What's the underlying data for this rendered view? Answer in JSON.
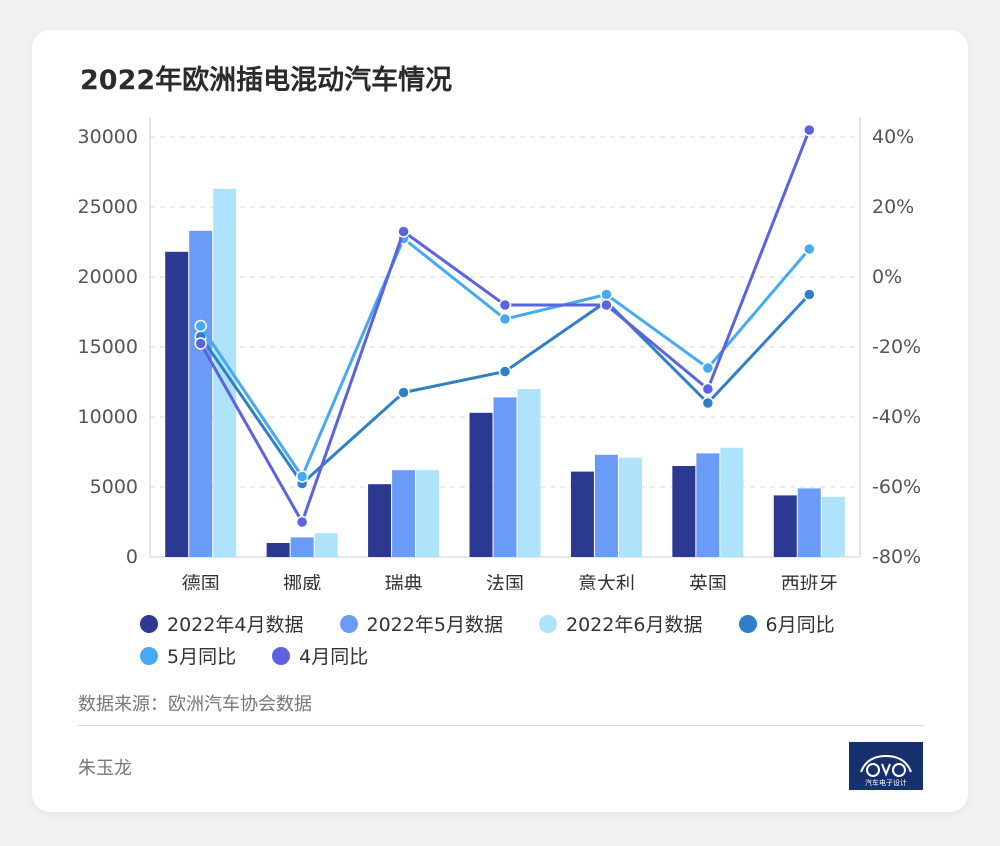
{
  "title": "2022年欧洲插电混动汽车情况",
  "source": "数据来源：欧洲汽车协会数据",
  "author": "朱玉龙",
  "logo": {
    "icon": "car-outline-logo",
    "text": "汽车电子设计"
  },
  "colors": {
    "apr_bar": "#2b3990",
    "may_bar": "#6a9bf7",
    "jun_bar": "#aee3fb",
    "jun_yoy": "#2f80c7",
    "may_yoy": "#45aaf2",
    "apr_yoy": "#5b63e0",
    "grid": "#d6d6d6",
    "axis_text": "#555555"
  },
  "chart_data": {
    "type": "bar",
    "categories": [
      "德国",
      "挪威",
      "瑞典",
      "法国",
      "意大利",
      "英国",
      "西班牙"
    ],
    "bar_series": [
      {
        "name": "2022年4月数据",
        "color_key": "apr_bar",
        "values": [
          21800,
          1000,
          5200,
          10300,
          6100,
          6500,
          4400
        ]
      },
      {
        "name": "2022年5月数据",
        "color_key": "may_bar",
        "values": [
          23300,
          1400,
          6200,
          11400,
          7300,
          7400,
          4900
        ]
      },
      {
        "name": "2022年6月数据",
        "color_key": "jun_bar",
        "values": [
          26300,
          1700,
          6200,
          12000,
          7100,
          7800,
          4300
        ]
      }
    ],
    "line_series": [
      {
        "name": "6月同比",
        "color_key": "jun_yoy",
        "values": [
          -17,
          -59,
          -33,
          -27,
          -7,
          -36,
          -5
        ]
      },
      {
        "name": "5月同比",
        "color_key": "may_yoy",
        "values": [
          -14,
          -57,
          11,
          -12,
          -5,
          -26,
          8
        ]
      },
      {
        "name": "4月同比",
        "color_key": "apr_yoy",
        "values": [
          -19,
          -70,
          13,
          -8,
          -8,
          -32,
          42
        ]
      }
    ],
    "y_left": {
      "min": 0,
      "max": 30000,
      "ticks": [
        "0",
        "5000",
        "10000",
        "15000",
        "20000",
        "25000",
        "30000"
      ]
    },
    "y_right": {
      "min": -80,
      "max": 40,
      "ticks": [
        "-80%",
        "-60%",
        "-40%",
        "-20%",
        "0%",
        "20%",
        "40%"
      ]
    },
    "grid": true,
    "legend_position": "bottom",
    "legend_rows": [
      [
        "2022年4月数据",
        "2022年5月数据",
        "2022年6月数据",
        "6月同比"
      ],
      [
        "5月同比",
        "4月同比"
      ]
    ]
  }
}
